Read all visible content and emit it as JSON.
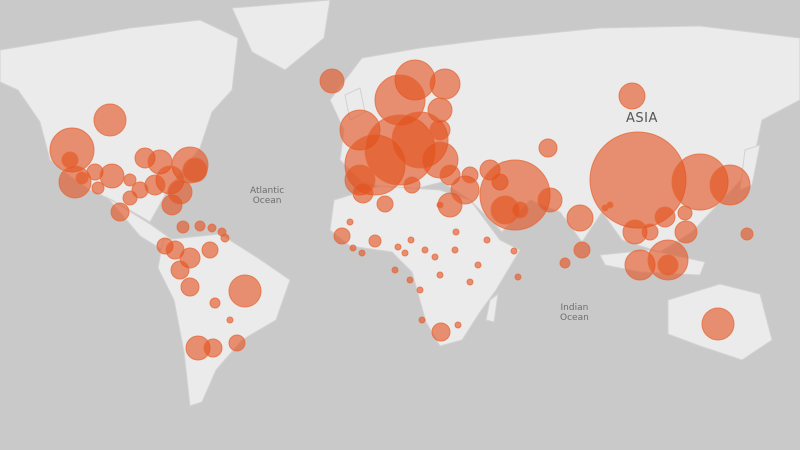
{
  "map": {
    "labels": {
      "atlantic": "Atlantic\nOcean",
      "atlantic_line1": "Atlantic",
      "atlantic_line2": "Ocean",
      "indian_line1": "Indian",
      "indian_line2": "Ocean",
      "asia": "ASIA"
    },
    "colors": {
      "ocean": "#c9c9c9",
      "land": "#ebebeb",
      "bubble": "#e2501c"
    },
    "marker_type": "proportional-bubble"
  }
}
